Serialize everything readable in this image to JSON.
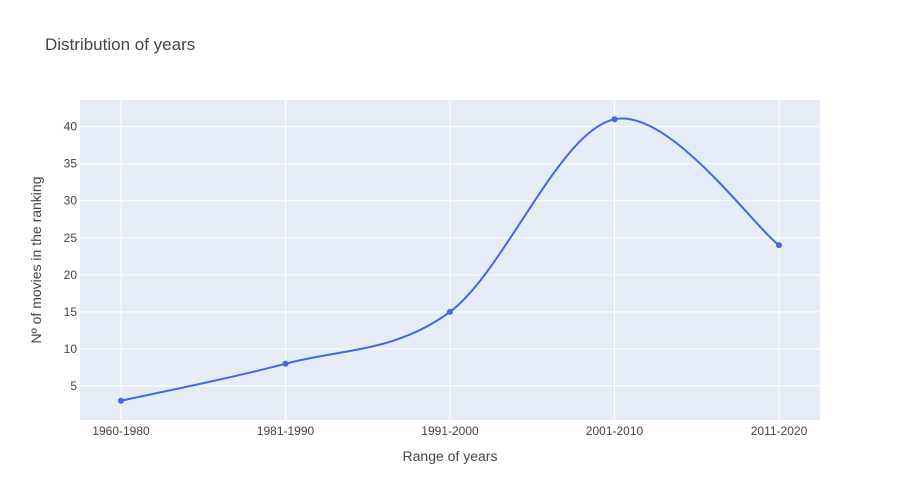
{
  "chart_data": {
    "type": "line",
    "title": "Distribution of years",
    "xlabel": "Range of years",
    "ylabel": "Nº of movies in the ranking",
    "categories": [
      "1960-1980",
      "1981-1990",
      "1991-2000",
      "2001-2010",
      "2011-2020"
    ],
    "series": [
      {
        "values": [
          3,
          8,
          15,
          41,
          24
        ]
      }
    ],
    "ylim": [
      0.4,
      43.6
    ],
    "yticks": [
      5,
      10,
      15,
      20,
      25,
      30,
      35,
      40
    ],
    "grid": true,
    "line_shape": "spline",
    "colors": {
      "line": "#4169e1",
      "plot_bg": "#e5ecf6",
      "grid": "#ffffff",
      "text": "#444444"
    }
  }
}
